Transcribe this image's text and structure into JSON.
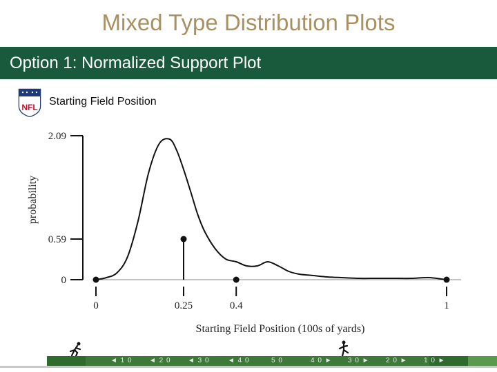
{
  "header": {
    "title": "Mixed Type Distribution Plots",
    "banner": "Option 1: Normalized Support Plot"
  },
  "logo": {
    "text": "NFL"
  },
  "chart_data": {
    "type": "line",
    "title": "Starting Field Position",
    "xlabel": "Starting Field Position (100s of yards)",
    "ylabel": "probability",
    "xlim": [
      0,
      1
    ],
    "ylim": [
      0,
      2.09
    ],
    "xticks": [
      {
        "value": 0,
        "label": "0"
      },
      {
        "value": 0.25,
        "label": "0.25"
      },
      {
        "value": 0.4,
        "label": "0.4"
      },
      {
        "value": 1,
        "label": "1"
      }
    ],
    "yticks": [
      {
        "value": 0,
        "label": "0"
      },
      {
        "value": 0.59,
        "label": "0.59"
      },
      {
        "value": 2.09,
        "label": "2.09"
      }
    ],
    "density": {
      "x": [
        0,
        0.03,
        0.06,
        0.09,
        0.12,
        0.15,
        0.18,
        0.21,
        0.23,
        0.25,
        0.27,
        0.29,
        0.31,
        0.34,
        0.37,
        0.4,
        0.43,
        0.46,
        0.49,
        0.52,
        0.55,
        0.58,
        0.62,
        0.66,
        0.7,
        0.75,
        0.8,
        0.85,
        0.9,
        0.95,
        1.0
      ],
      "y": [
        0,
        0.03,
        0.1,
        0.33,
        0.85,
        1.55,
        1.97,
        2.04,
        1.88,
        1.6,
        1.28,
        0.95,
        0.7,
        0.45,
        0.3,
        0.26,
        0.2,
        0.2,
        0.26,
        0.2,
        0.12,
        0.08,
        0.06,
        0.04,
        0.03,
        0.02,
        0.02,
        0.02,
        0.02,
        0.03,
        0
      ]
    },
    "point_masses": [
      {
        "x": 0,
        "y": 0
      },
      {
        "x": 0.25,
        "y": 0.59
      },
      {
        "x": 0.4,
        "y": 0
      },
      {
        "x": 1,
        "y": 0
      }
    ]
  },
  "field": {
    "yard_labels": [
      "◄ 1 0",
      "◄ 2 0",
      "◄ 3 0",
      "◄ 4 0",
      "5 0",
      "4 0 ►",
      "3 0 ►",
      "2 0 ►",
      "1 0 ►"
    ]
  },
  "colors": {
    "title": "#a89060",
    "banner": "#1a5a3c",
    "ink": "#111111",
    "field": "#3d7a3a"
  }
}
